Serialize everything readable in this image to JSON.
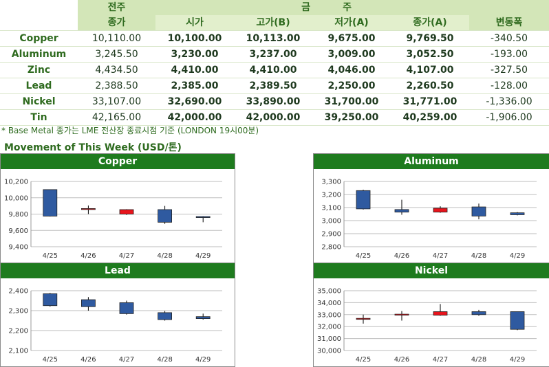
{
  "table": {
    "header": {
      "prev_week": "전주",
      "prev_close": "종가",
      "this_week_a": "금",
      "this_week_b": "주",
      "open": "시가",
      "high": "고가(B)",
      "low": "저가(A)",
      "close": "종가(A)",
      "change": "변동폭"
    },
    "rows": [
      {
        "metal": "Copper",
        "prev_close": "10,110.00",
        "open": "10,100.00",
        "high": "10,113.00",
        "low": "9,675.00",
        "close": "9,769.50",
        "change": "-340.50"
      },
      {
        "metal": "Aluminum",
        "prev_close": "3,245.50",
        "open": "3,230.00",
        "high": "3,237.00",
        "low": "3,009.00",
        "close": "3,052.50",
        "change": "-193.00"
      },
      {
        "metal": "Zinc",
        "prev_close": "4,434.50",
        "open": "4,410.00",
        "high": "4,410.00",
        "low": "4,046.00",
        "close": "4,107.00",
        "change": "-327.50"
      },
      {
        "metal": "Lead",
        "prev_close": "2,388.50",
        "open": "2,385.00",
        "high": "2,389.50",
        "low": "2,250.00",
        "close": "2,260.50",
        "change": "-128.00"
      },
      {
        "metal": "Nickel",
        "prev_close": "33,107.00",
        "open": "32,690.00",
        "high": "33,890.00",
        "low": "31,700.00",
        "close": "31,771.00",
        "change": "-1,336.00"
      },
      {
        "metal": "Tin",
        "prev_close": "42,165.00",
        "open": "42,000.00",
        "high": "42,000.00",
        "low": "39,250.00",
        "close": "40,259.00",
        "change": "-1,906.00"
      }
    ]
  },
  "note": "* Base Metal 종가는 LME 전산장 종료시점 기준 (LONDON 19시00분)",
  "section_title": "Movement of This Week (USD/톤)",
  "colors": {
    "up": "#e8141c",
    "down": "#2f5aa0",
    "header_bar": "#1e7b1e"
  },
  "chart_data": [
    {
      "type": "candlestick",
      "title": "Copper",
      "categories": [
        "4/25",
        "4/26",
        "4/27",
        "4/28",
        "4/29"
      ],
      "ylim": [
        9400,
        10200
      ],
      "yticks": [
        9400,
        9600,
        9800,
        10000,
        10200
      ],
      "yticklabels": [
        "9,400",
        "9,600",
        "9,800",
        "10,000",
        "10,200"
      ],
      "ohlc": [
        {
          "open": 10100,
          "high": 10100,
          "low": 9770,
          "close": 9775
        },
        {
          "open": 9868,
          "high": 9905,
          "low": 9800,
          "close": 9868
        },
        {
          "open": 9800,
          "high": 9860,
          "low": 9790,
          "close": 9855
        },
        {
          "open": 9855,
          "high": 9900,
          "low": 9680,
          "close": 9700
        },
        {
          "open": 9770,
          "high": 9775,
          "low": 9700,
          "close": 9765
        }
      ]
    },
    {
      "type": "candlestick",
      "title": "Aluminum",
      "categories": [
        "4/25",
        "4/26",
        "4/27",
        "4/28",
        "4/29"
      ],
      "ylim": [
        2800,
        3300
      ],
      "yticks": [
        2800,
        2900,
        3000,
        3100,
        3200,
        3300
      ],
      "yticklabels": [
        "2,800",
        "2,900",
        "3,000",
        "3,100",
        "3,200",
        "3,300"
      ],
      "ohlc": [
        {
          "open": 3230,
          "high": 3237,
          "low": 3085,
          "close": 3090
        },
        {
          "open": 3085,
          "high": 3160,
          "low": 3045,
          "close": 3065
        },
        {
          "open": 3065,
          "high": 3110,
          "low": 3060,
          "close": 3095
        },
        {
          "open": 3105,
          "high": 3130,
          "low": 3010,
          "close": 3035
        },
        {
          "open": 3060,
          "high": 3065,
          "low": 3040,
          "close": 3045
        }
      ]
    },
    {
      "type": "candlestick",
      "title": "Lead",
      "categories": [
        "4/25",
        "4/26",
        "4/27",
        "4/28",
        "4/29"
      ],
      "ylim": [
        2100,
        2400
      ],
      "yticks": [
        2100,
        2200,
        2300,
        2400
      ],
      "yticklabels": [
        "2,100",
        "2,200",
        "2,300",
        "2,400"
      ],
      "ohlc": [
        {
          "open": 2385,
          "high": 2389,
          "low": 2320,
          "close": 2325
        },
        {
          "open": 2355,
          "high": 2368,
          "low": 2300,
          "close": 2320
        },
        {
          "open": 2340,
          "high": 2350,
          "low": 2280,
          "close": 2285
        },
        {
          "open": 2290,
          "high": 2298,
          "low": 2250,
          "close": 2255
        },
        {
          "open": 2270,
          "high": 2285,
          "low": 2255,
          "close": 2260
        }
      ]
    },
    {
      "type": "candlestick",
      "title": "Nickel",
      "categories": [
        "4/25",
        "4/26",
        "4/27",
        "4/28",
        "4/29"
      ],
      "ylim": [
        30000,
        35000
      ],
      "yticks": [
        30000,
        31000,
        32000,
        33000,
        34000,
        35000
      ],
      "yticklabels": [
        "30,000",
        "31,000",
        "32,000",
        "33,000",
        "34,000",
        "35,000"
      ],
      "ohlc": [
        {
          "open": 32690,
          "high": 33000,
          "low": 32250,
          "close": 32690
        },
        {
          "open": 33020,
          "high": 33300,
          "low": 32500,
          "close": 33040
        },
        {
          "open": 32950,
          "high": 33890,
          "low": 32900,
          "close": 33250
        },
        {
          "open": 33250,
          "high": 33400,
          "low": 32900,
          "close": 33000
        },
        {
          "open": 33250,
          "high": 33250,
          "low": 31700,
          "close": 31771
        }
      ]
    }
  ]
}
